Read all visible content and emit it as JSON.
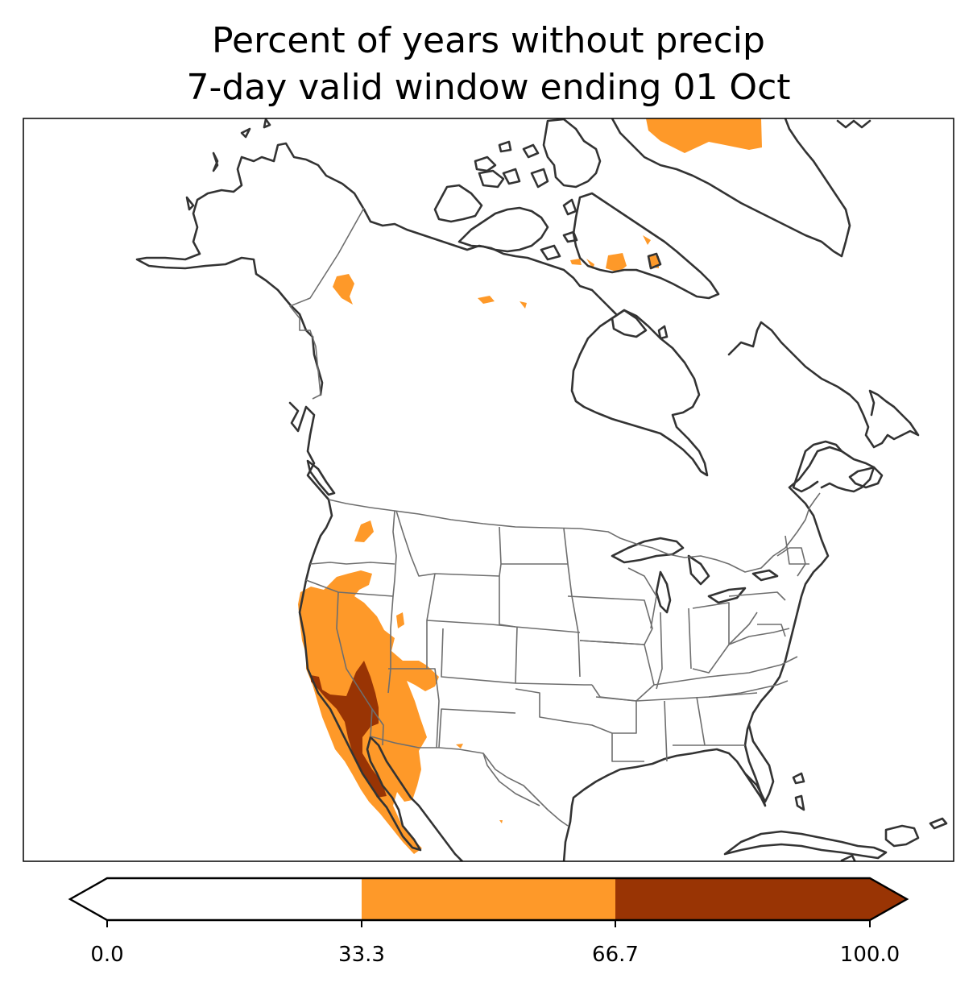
{
  "title": {
    "line1": "Percent of years without precip",
    "line2": "7-day valid window ending 01 Oct"
  },
  "colorbar": {
    "ticks": [
      "0.0",
      "33.3",
      "66.7",
      "100.0"
    ],
    "bins": [
      {
        "range": [
          0.0,
          33.3
        ],
        "color": "#ffffff"
      },
      {
        "range": [
          33.3,
          66.7
        ],
        "color": "#fe9929"
      },
      {
        "range": [
          66.7,
          100.0
        ],
        "color": "#993404"
      }
    ],
    "extend": "both"
  },
  "colors": {
    "coast": "#333333",
    "borders": "#6e6e6e",
    "mid": "#fe9929",
    "high": "#993404"
  }
}
